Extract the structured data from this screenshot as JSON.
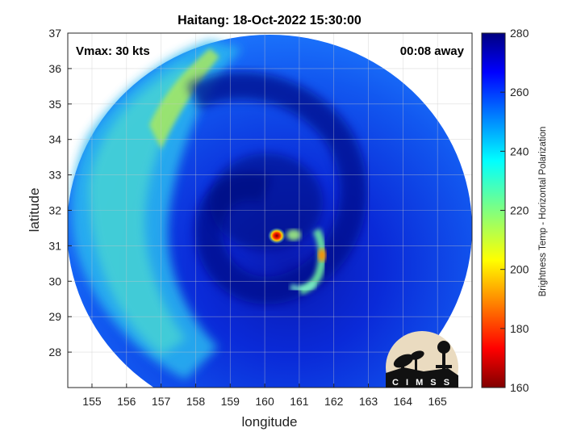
{
  "chart_data": {
    "type": "heatmap",
    "title": "Haitang: 18-Oct-2022 15:30:00",
    "xlabel": "longitude",
    "ylabel": "latitude",
    "xlim": [
      154.3,
      166.0
    ],
    "ylim": [
      27.0,
      37.0
    ],
    "x_ticks": [
      155,
      156,
      157,
      158,
      159,
      160,
      161,
      162,
      163,
      164,
      165
    ],
    "y_ticks": [
      28,
      29,
      30,
      31,
      32,
      33,
      34,
      35,
      36,
      37
    ],
    "grid": true,
    "annotations": {
      "left": "Vmax: 30 kts",
      "right": "00:08 away"
    },
    "storm_center": {
      "lon": 160.3,
      "lat": 31.3
    },
    "colorbar": {
      "label": "Brightness Temp - Horizontal Polarization",
      "range": [
        160,
        280
      ],
      "ticks": [
        160,
        180,
        200,
        220,
        240,
        260,
        280
      ],
      "colormap": "jet",
      "position": "right"
    }
  },
  "logo": {
    "text": "C I M S S"
  },
  "colors": {
    "background": "#ffffff",
    "frame": "#000000",
    "logo_bg": "#eadbc0"
  }
}
